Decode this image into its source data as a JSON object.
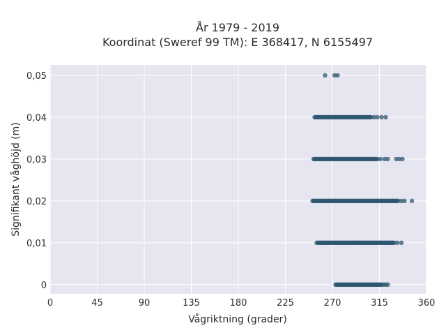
{
  "chart_data": {
    "type": "scatter",
    "title": [
      "År 1979 - 2019",
      "Koordinat (Sweref 99 TM): E 368417, N 6155497"
    ],
    "xlabel": "Vågriktning (grader)",
    "ylabel": "Signifikant våghöjd (m)",
    "xlim": [
      0,
      360
    ],
    "ylim": [
      -0.0022,
      0.0525
    ],
    "xticks": [
      0,
      45,
      90,
      135,
      180,
      225,
      270,
      315,
      360
    ],
    "xtick_labels": [
      "0",
      "45",
      "90",
      "135",
      "180",
      "225",
      "270",
      "315",
      "360"
    ],
    "yticks": [
      0,
      0.01,
      0.02,
      0.03,
      0.04,
      0.05
    ],
    "ytick_labels": [
      "0",
      "0,01",
      "0,02",
      "0,03",
      "0,04",
      "0,05"
    ],
    "grid": true,
    "colors": {
      "background": "#e5e6ef",
      "marker": "#2f5570",
      "grid": "#ffffff"
    },
    "series": [
      {
        "points": [
          {
            "y": 0.05,
            "x": [
              263,
              272,
              275
            ]
          },
          {
            "y": 0.04,
            "from": 253,
            "to": 307,
            "x": [
              310,
              313,
              317,
              321
            ]
          },
          {
            "y": 0.03,
            "from": 252,
            "to": 313,
            "x": [
              316,
              320,
              323,
              331,
              334,
              337
            ]
          },
          {
            "y": 0.02,
            "from": 251,
            "to": 333,
            "x": [
              336,
              339,
              346
            ]
          },
          {
            "y": 0.01,
            "from": 255,
            "to": 329,
            "x": [
              332,
              336
            ]
          },
          {
            "y": 0.0,
            "from": 273,
            "to": 317,
            "x": [
              319,
              321,
              323
            ]
          }
        ]
      }
    ]
  }
}
